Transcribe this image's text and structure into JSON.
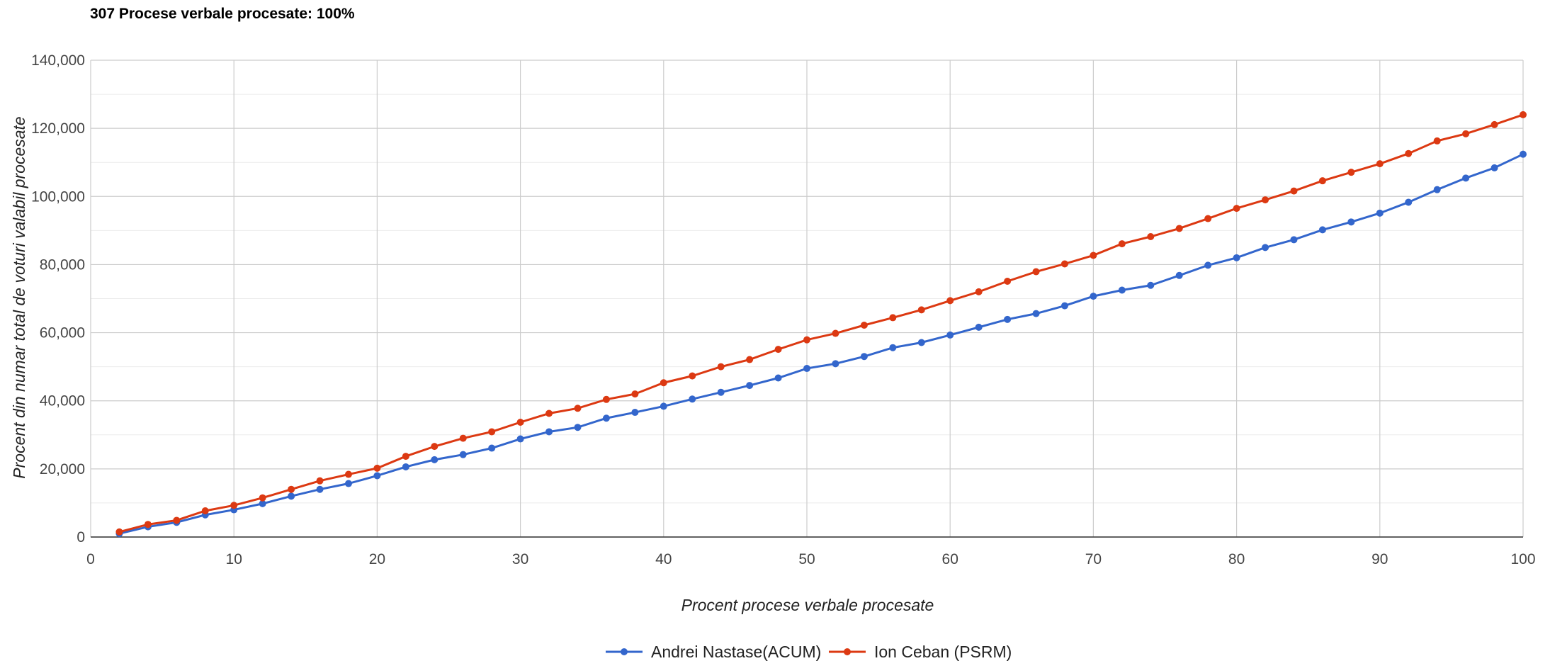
{
  "header": {
    "title": "307 Procese verbale procesate: 100%"
  },
  "chart_data": {
    "type": "line",
    "title": "307 Procese verbale procesate: 100%",
    "xlabel": "Procent procese verbale procesate",
    "ylabel": "Procent din numar total de voturi valabil procesate",
    "xlim": [
      0,
      100
    ],
    "ylim": [
      0,
      140000
    ],
    "x_ticks": [
      "0",
      "10",
      "20",
      "30",
      "40",
      "50",
      "60",
      "70",
      "80",
      "90",
      "100"
    ],
    "y_ticks": [
      "0",
      "20,000",
      "40,000",
      "60,000",
      "80,000",
      "100,000",
      "120,000",
      "140,000"
    ],
    "grid": true,
    "legend_position": "bottom",
    "x": [
      2,
      4,
      6,
      8,
      10,
      12,
      14,
      16,
      18,
      20,
      22,
      24,
      26,
      28,
      30,
      32,
      34,
      36,
      38,
      40,
      42,
      44,
      46,
      48,
      50,
      52,
      54,
      56,
      58,
      60,
      62,
      64,
      66,
      68,
      70,
      72,
      74,
      76,
      78,
      80,
      82,
      84,
      86,
      88,
      90,
      92,
      94,
      96,
      98,
      100
    ],
    "series": [
      {
        "name": "Andrei Nastase(ACUM)",
        "color": "#3366cc",
        "values": [
          1000,
          3000,
          4300,
          6500,
          8000,
          9800,
          12000,
          14000,
          15700,
          18000,
          20600,
          22700,
          24200,
          26100,
          28800,
          30900,
          32200,
          34900,
          36600,
          38400,
          40500,
          42500,
          44500,
          46700,
          49500,
          50900,
          53000,
          55600,
          57100,
          59300,
          61600,
          63900,
          65600,
          67900,
          70700,
          72500,
          73900,
          76800,
          79800,
          82000,
          85000,
          87300,
          90200,
          92500,
          95100,
          98300,
          102000,
          105400,
          108400,
          112400
        ]
      },
      {
        "name": "Ion Ceban (PSRM)",
        "color": "#dc3912",
        "values": [
          1500,
          3700,
          4900,
          7700,
          9300,
          11500,
          14000,
          16500,
          18400,
          20200,
          23700,
          26600,
          29000,
          30900,
          33700,
          36300,
          37800,
          40400,
          42000,
          45300,
          47300,
          50000,
          52100,
          55100,
          57900,
          59800,
          62200,
          64400,
          66700,
          69400,
          72000,
          75100,
          77900,
          80200,
          82700,
          86100,
          88200,
          90600,
          93500,
          96500,
          99000,
          101600,
          104600,
          107100,
          109600,
          112600,
          116300,
          118400,
          121100,
          124000
        ]
      }
    ]
  }
}
